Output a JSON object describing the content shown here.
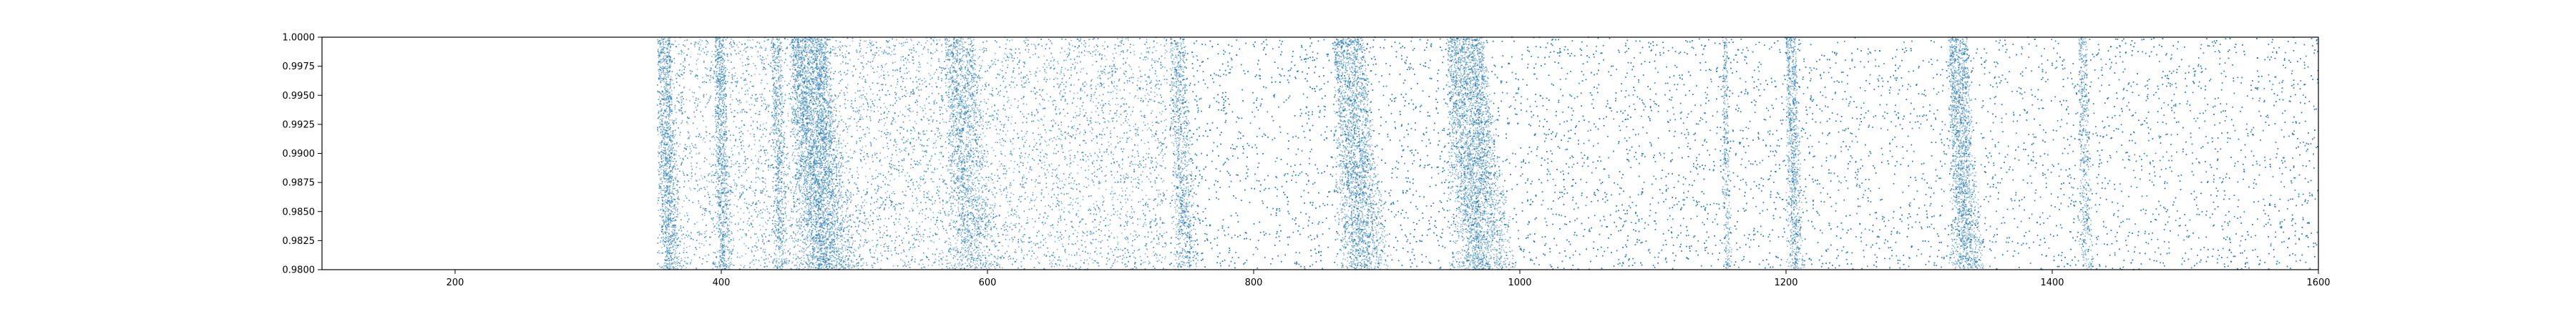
{
  "chart_data": {
    "type": "scatter",
    "title": "",
    "xlabel": "",
    "ylabel": "",
    "xlim": [
      100,
      1600
    ],
    "ylim": [
      0.98,
      1.0
    ],
    "xticks": [
      200,
      400,
      600,
      800,
      1000,
      1200,
      1400,
      1600
    ],
    "yticks": [
      0.98,
      0.9825,
      0.985,
      0.9875,
      0.99,
      0.9925,
      0.995,
      0.9975,
      1.0
    ],
    "xtick_labels": [
      "200",
      "400",
      "600",
      "800",
      "1000",
      "1200",
      "1400",
      "1600"
    ],
    "ytick_labels": [
      "0.9800",
      "0.9825",
      "0.9850",
      "0.9875",
      "0.9900",
      "0.9925",
      "0.9950",
      "0.9975",
      "1.0000"
    ],
    "grid": false,
    "series": [
      {
        "color": "#1f77b4",
        "marker_opacity": 0.55,
        "segments": [
          {
            "x_range": [
              352,
              735
            ],
            "density": 26
          },
          {
            "x_range": [
              737,
              1600
            ],
            "density": 22
          }
        ],
        "dense_bands": [
          {
            "x_range": [
              352,
              372
            ],
            "weight": 2.5
          },
          {
            "x_range": [
              395,
              410
            ],
            "weight": 2.6
          },
          {
            "x_range": [
              438,
              452
            ],
            "weight": 2.0
          },
          {
            "x_range": [
              452,
              505
            ],
            "weight": 3.0
          },
          {
            "x_range": [
              568,
              612
            ],
            "weight": 1.6
          },
          {
            "x_range": [
              737,
              760
            ],
            "weight": 1.8
          },
          {
            "x_range": [
              860,
              905
            ],
            "weight": 2.4
          },
          {
            "x_range": [
              945,
              1000
            ],
            "weight": 2.6
          },
          {
            "x_range": [
              1152,
              1160
            ],
            "weight": 1.8
          },
          {
            "x_range": [
              1200,
              1215
            ],
            "weight": 2.6
          },
          {
            "x_range": [
              1322,
              1350
            ],
            "weight": 2.8
          },
          {
            "x_range": [
              1420,
              1432
            ],
            "weight": 1.8
          }
        ]
      }
    ]
  }
}
